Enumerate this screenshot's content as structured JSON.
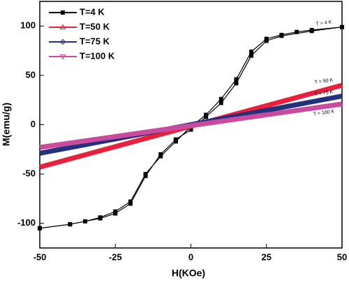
{
  "chart_data": {
    "type": "line",
    "xlabel": "H(KOe)",
    "ylabel": "M(emu/g)",
    "xlim": [
      -50,
      50
    ],
    "ylim": [
      -125,
      125
    ],
    "xticks": [
      -50,
      -25,
      0,
      25,
      50
    ],
    "yticks": [
      -100,
      -50,
      0,
      50,
      100
    ],
    "legend": "upper left",
    "series": [
      {
        "name": "T=4 K",
        "color": "#000000",
        "marker": "square",
        "x": [
          -50,
          -40,
          -35,
          -30,
          -25,
          -20,
          -15,
          -10,
          -5,
          0,
          5,
          10,
          15,
          20,
          25,
          30,
          35,
          40,
          50,
          40,
          30,
          25,
          20,
          15,
          10,
          5,
          0,
          -5,
          -10,
          -15,
          -20,
          -25,
          -30,
          -40,
          -50
        ],
        "values": [
          -105,
          -101,
          -98,
          -94,
          -88,
          -78,
          -50,
          -32,
          -17,
          -2,
          10,
          26,
          46,
          74,
          87,
          91,
          94,
          96,
          99,
          95,
          90,
          85,
          70,
          42,
          22,
          8,
          -5,
          -15,
          -30,
          -52,
          -80,
          -90,
          -95,
          -101,
          -105
        ]
      },
      {
        "name": "T=50 K",
        "color": "#e8203c",
        "marker": "triangle",
        "x": [
          -50,
          50
        ],
        "values": [
          -43,
          40
        ]
      },
      {
        "name": "T=75 K",
        "color": "#22307e",
        "marker": "diamond",
        "x": [
          -50,
          50
        ],
        "values": [
          -29,
          29
        ]
      },
      {
        "name": "T=100 K",
        "color": "#c94b9e",
        "marker": "triangle-down",
        "x": [
          -50,
          50
        ],
        "values": [
          -23,
          21
        ]
      }
    ],
    "annotations": [
      {
        "text": "T = 4 K",
        "x": 44,
        "y": 103
      },
      {
        "text": "T = 50 K",
        "x": 44,
        "y": 44
      },
      {
        "text": "T = 75 K",
        "x": 44,
        "y": 32
      },
      {
        "text": "T = 100 K",
        "x": 44,
        "y": 12
      }
    ]
  }
}
